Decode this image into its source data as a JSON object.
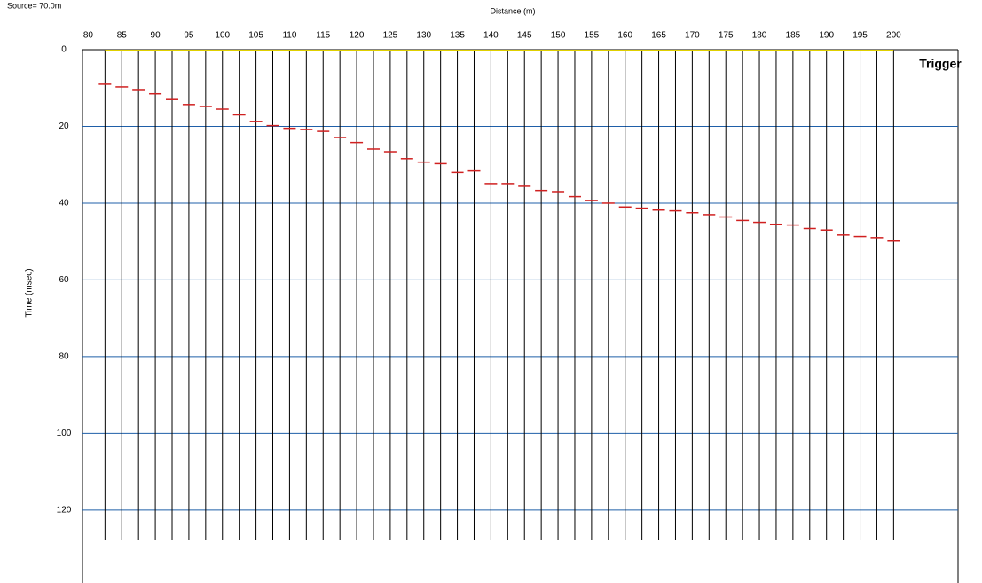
{
  "chart_data": {
    "type": "scatter",
    "title": "Distance (m)",
    "source_label": "Source= 70.0m",
    "y_label": "Time (msec)",
    "annotation": "Trigger",
    "x": [
      82.5,
      85,
      87.5,
      90,
      92.5,
      95,
      97.5,
      100,
      102.5,
      105,
      107.5,
      110,
      112.5,
      115,
      117.5,
      120,
      122.5,
      125,
      127.5,
      130,
      132.5,
      135,
      137.5,
      140,
      142.5,
      145,
      147.5,
      150,
      152.5,
      155,
      157.5,
      160,
      162.5,
      165,
      167.5,
      170,
      172.5,
      175,
      177.5,
      180,
      182.5,
      185,
      187.5,
      190,
      192.5,
      195,
      197.5,
      200
    ],
    "values": [
      9,
      9.7,
      10.4,
      11.5,
      13,
      14.3,
      14.8,
      15.5,
      17,
      18.7,
      19.8,
      20.5,
      20.8,
      21.3,
      22.9,
      24.2,
      25.9,
      26.6,
      28.4,
      29.3,
      29.7,
      32,
      31.6,
      34.9,
      34.9,
      35.6,
      36.7,
      37,
      38.3,
      39.3,
      40,
      41,
      41.3,
      41.8,
      42,
      42.5,
      43,
      43.6,
      44.5,
      45,
      45.5,
      45.7,
      46.6,
      47,
      48.3,
      48.7,
      49,
      49.9
    ],
    "color": "#d02020",
    "grid_color": "#1f5fa8",
    "xlim": [
      79.15,
      209.6
    ],
    "xticks": [
      80,
      85,
      90,
      95,
      100,
      105,
      110,
      115,
      120,
      125,
      130,
      135,
      140,
      145,
      150,
      155,
      160,
      165,
      170,
      175,
      180,
      185,
      190,
      195,
      200
    ],
    "ylim": [
      0,
      139
    ],
    "yticks": [
      0,
      20,
      40,
      60,
      80,
      100,
      120
    ],
    "y_inverted": true,
    "grid": true
  }
}
